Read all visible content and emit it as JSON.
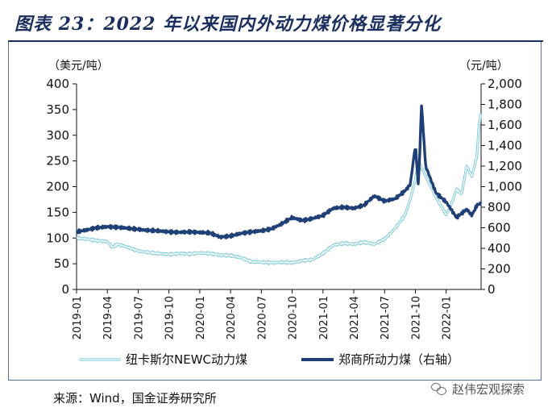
{
  "header": {
    "title": "图表 23：2022 年以来国内外动力煤价格显著分化"
  },
  "footer": {
    "source": "来源：Wind，国金证券研究所",
    "watermark": "赵伟宏观探索"
  },
  "chart_data": {
    "type": "line",
    "title": "2022 年以来国内外动力煤价格显著分化",
    "left_axis_unit": "（美元/吨）",
    "right_axis_unit": "（元/吨）",
    "ylim_left": [
      0,
      400
    ],
    "yticks_left": [
      "0",
      "50",
      "100",
      "150",
      "200",
      "250",
      "300",
      "350",
      "400"
    ],
    "ylim_right": [
      0,
      2000
    ],
    "yticks_right": [
      "0",
      "200",
      "400",
      "600",
      "800",
      "1,000",
      "1,200",
      "1,400",
      "1,600",
      "1,800",
      "2,000"
    ],
    "x_start": "2019-01",
    "x_end": "2022-04",
    "xticks": [
      "2019-01",
      "2019-04",
      "2019-07",
      "2019-10",
      "2020-01",
      "2020-04",
      "2020-07",
      "2020-10",
      "2021-01",
      "2021-04",
      "2021-07",
      "2021-10",
      "2022-01"
    ],
    "grid": false,
    "series": [
      {
        "name": "纽卡斯尔NEWC动力煤",
        "axis": "left",
        "color": "#7fcbd6",
        "style": "double",
        "x": [
          0,
          1,
          2,
          3,
          3.5,
          4,
          5,
          6,
          7,
          8,
          9,
          10,
          11,
          12,
          13,
          14,
          15,
          16,
          17,
          18,
          19,
          20,
          21,
          22,
          23,
          24,
          25,
          26,
          27,
          28,
          29,
          30,
          31,
          32,
          32.5,
          33,
          33.3,
          34,
          35,
          36,
          36.5,
          37,
          37.5,
          38,
          38.5,
          39,
          39.2,
          39.4
        ],
        "y": [
          100,
          98,
          95,
          93,
          82,
          88,
          82,
          75,
          72,
          70,
          68,
          70,
          69,
          71,
          70,
          67,
          66,
          62,
          54,
          53,
          52,
          53,
          52,
          56,
          58,
          70,
          86,
          90,
          88,
          92,
          88,
          98,
          118,
          145,
          175,
          215,
          250,
          220,
          180,
          145,
          165,
          195,
          185,
          240,
          220,
          260,
          320,
          345
        ]
      },
      {
        "name": "郑商所动力煤（右轴）",
        "axis": "right",
        "color": "#1f3f77",
        "style": "solid",
        "x": [
          0,
          1,
          2,
          3,
          4,
          5,
          6,
          7,
          8,
          9,
          10,
          11,
          12,
          13,
          14,
          15,
          16,
          17,
          18,
          19,
          20,
          21,
          22,
          23,
          24,
          25,
          26,
          27,
          28,
          29,
          30,
          31,
          32,
          32.5,
          33,
          33.3,
          33.6,
          34,
          35,
          36,
          37,
          38,
          38.5,
          39,
          39.4
        ],
        "y": [
          560,
          580,
          600,
          610,
          605,
          595,
          585,
          575,
          570,
          560,
          555,
          560,
          555,
          550,
          510,
          520,
          545,
          560,
          570,
          590,
          640,
          700,
          670,
          690,
          720,
          790,
          800,
          790,
          820,
          910,
          860,
          880,
          960,
          1020,
          1400,
          1000,
          1800,
          1200,
          940,
          850,
          700,
          780,
          720,
          820,
          840
        ]
      }
    ]
  }
}
